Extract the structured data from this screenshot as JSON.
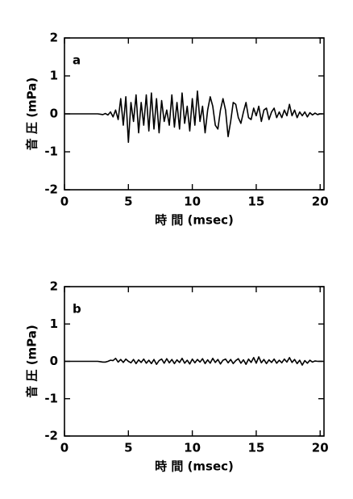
{
  "chart_data": [
    {
      "type": "line",
      "annotation": "a",
      "xlabel": "時 間 (msec)",
      "ylabel": "音 圧 (mPa)",
      "x": [
        0,
        0.2,
        0.4,
        0.6,
        0.8,
        1,
        1.2,
        1.4,
        1.6,
        1.8,
        2,
        2.2,
        2.4,
        2.6,
        2.8,
        3,
        3.2,
        3.4,
        3.6,
        3.8,
        4,
        4.2,
        4.4,
        4.6,
        4.8,
        5,
        5.2,
        5.4,
        5.6,
        5.8,
        6,
        6.2,
        6.4,
        6.6,
        6.8,
        7,
        7.2,
        7.4,
        7.6,
        7.8,
        8,
        8.2,
        8.4,
        8.6,
        8.8,
        9,
        9.2,
        9.4,
        9.6,
        9.8,
        10,
        10.2,
        10.4,
        10.6,
        10.8,
        11,
        11.2,
        11.4,
        11.6,
        11.8,
        12,
        12.2,
        12.4,
        12.6,
        12.8,
        13,
        13.2,
        13.4,
        13.6,
        13.8,
        14,
        14.2,
        14.4,
        14.6,
        14.8,
        15,
        15.2,
        15.4,
        15.6,
        15.8,
        16,
        16.2,
        16.4,
        16.6,
        16.8,
        17,
        17.2,
        17.4,
        17.6,
        17.8,
        18,
        18.2,
        18.4,
        18.6,
        18.8,
        19,
        19.2,
        19.4,
        19.6,
        19.8,
        20,
        20.2
      ],
      "series": [
        {
          "color": "#000000",
          "values": [
            0,
            0,
            0,
            0,
            0,
            0,
            0,
            0,
            0,
            0,
            0,
            0,
            0,
            0,
            -0.01,
            -0.02,
            0.01,
            -0.03,
            0.05,
            -0.08,
            0.1,
            -0.15,
            0.4,
            -0.3,
            0.45,
            -0.75,
            0.3,
            -0.2,
            0.5,
            -0.5,
            0.3,
            -0.3,
            0.5,
            -0.45,
            0.55,
            -0.4,
            0.4,
            -0.5,
            0.35,
            -0.2,
            0.1,
            -0.3,
            0.5,
            -0.35,
            0.3,
            -0.4,
            0.55,
            -0.25,
            0.2,
            -0.45,
            0.4,
            -0.3,
            0.6,
            -0.2,
            0.2,
            -0.5,
            0.1,
            0.45,
            0.2,
            -0.3,
            -0.4,
            0.1,
            0.4,
            0.1,
            -0.6,
            -0.2,
            0.3,
            0.25,
            -0.1,
            -0.25,
            0.05,
            0.3,
            -0.1,
            -0.15,
            0.15,
            -0.05,
            0.2,
            -0.2,
            0.1,
            0.15,
            -0.15,
            0.05,
            0.15,
            -0.1,
            0.05,
            -0.1,
            0.1,
            -0.05,
            0.25,
            -0.05,
            0.1,
            -0.1,
            0.05,
            -0.05,
            0.05,
            -0.08,
            0.03,
            -0.03,
            0.02,
            -0.02,
            0,
            0
          ]
        }
      ],
      "xlim": [
        0,
        20.3
      ],
      "ylim": [
        -2,
        2
      ],
      "xticks": [
        0,
        5,
        10,
        15,
        20
      ],
      "yticks": [
        -2,
        -1,
        0,
        1,
        2
      ]
    },
    {
      "type": "line",
      "annotation": "b",
      "xlabel": "時 間 (msec)",
      "ylabel": "音 圧 (mPa)",
      "x": [
        0,
        0.2,
        0.4,
        0.6,
        0.8,
        1,
        1.2,
        1.4,
        1.6,
        1.8,
        2,
        2.2,
        2.4,
        2.6,
        2.8,
        3,
        3.2,
        3.4,
        3.6,
        3.8,
        4,
        4.2,
        4.4,
        4.6,
        4.8,
        5,
        5.2,
        5.4,
        5.6,
        5.8,
        6,
        6.2,
        6.4,
        6.6,
        6.8,
        7,
        7.2,
        7.4,
        7.6,
        7.8,
        8,
        8.2,
        8.4,
        8.6,
        8.8,
        9,
        9.2,
        9.4,
        9.6,
        9.8,
        10,
        10.2,
        10.4,
        10.6,
        10.8,
        11,
        11.2,
        11.4,
        11.6,
        11.8,
        12,
        12.2,
        12.4,
        12.6,
        12.8,
        13,
        13.2,
        13.4,
        13.6,
        13.8,
        14,
        14.2,
        14.4,
        14.6,
        14.8,
        15,
        15.2,
        15.4,
        15.6,
        15.8,
        16,
        16.2,
        16.4,
        16.6,
        16.8,
        17,
        17.2,
        17.4,
        17.6,
        17.8,
        18,
        18.2,
        18.4,
        18.6,
        18.8,
        19,
        19.2,
        19.4,
        19.6,
        19.8,
        20,
        20.2
      ],
      "series": [
        {
          "color": "#000000",
          "values": [
            0,
            0,
            0,
            0,
            0,
            0,
            0,
            0,
            0,
            0,
            0,
            0,
            0,
            0,
            -0.01,
            -0.02,
            -0.02,
            0,
            0.03,
            0.02,
            0.08,
            -0.02,
            0.05,
            -0.03,
            0.06,
            0,
            -0.04,
            0.05,
            -0.06,
            0.04,
            -0.03,
            0.06,
            -0.05,
            0.03,
            -0.06,
            0.05,
            -0.08,
            0.02,
            0.06,
            -0.05,
            0.07,
            -0.04,
            0.05,
            -0.06,
            0.04,
            -0.03,
            0.08,
            -0.05,
            0.03,
            -0.07,
            0.06,
            -0.04,
            0.05,
            -0.02,
            0.07,
            -0.06,
            0.04,
            -0.05,
            0.08,
            -0.03,
            0.05,
            -0.07,
            0.03,
            0.06,
            -0.04,
            0.05,
            -0.06,
            0.02,
            0.07,
            -0.05,
            0.04,
            -0.08,
            0.06,
            -0.03,
            0.1,
            -0.05,
            0.12,
            -0.04,
            0.05,
            -0.06,
            0.04,
            -0.03,
            0.06,
            -0.05,
            0.03,
            -0.04,
            0.06,
            -0.02,
            0.1,
            -0.03,
            0.05,
            -0.06,
            0.03,
            -0.1,
            0.02,
            -0.05,
            0.03,
            -0.02,
            0.01,
            0,
            0,
            0
          ]
        }
      ],
      "xlim": [
        0,
        20.3
      ],
      "ylim": [
        -2,
        2
      ],
      "xticks": [
        0,
        5,
        10,
        15,
        20
      ],
      "yticks": [
        -2,
        -1,
        0,
        1,
        2
      ]
    }
  ]
}
